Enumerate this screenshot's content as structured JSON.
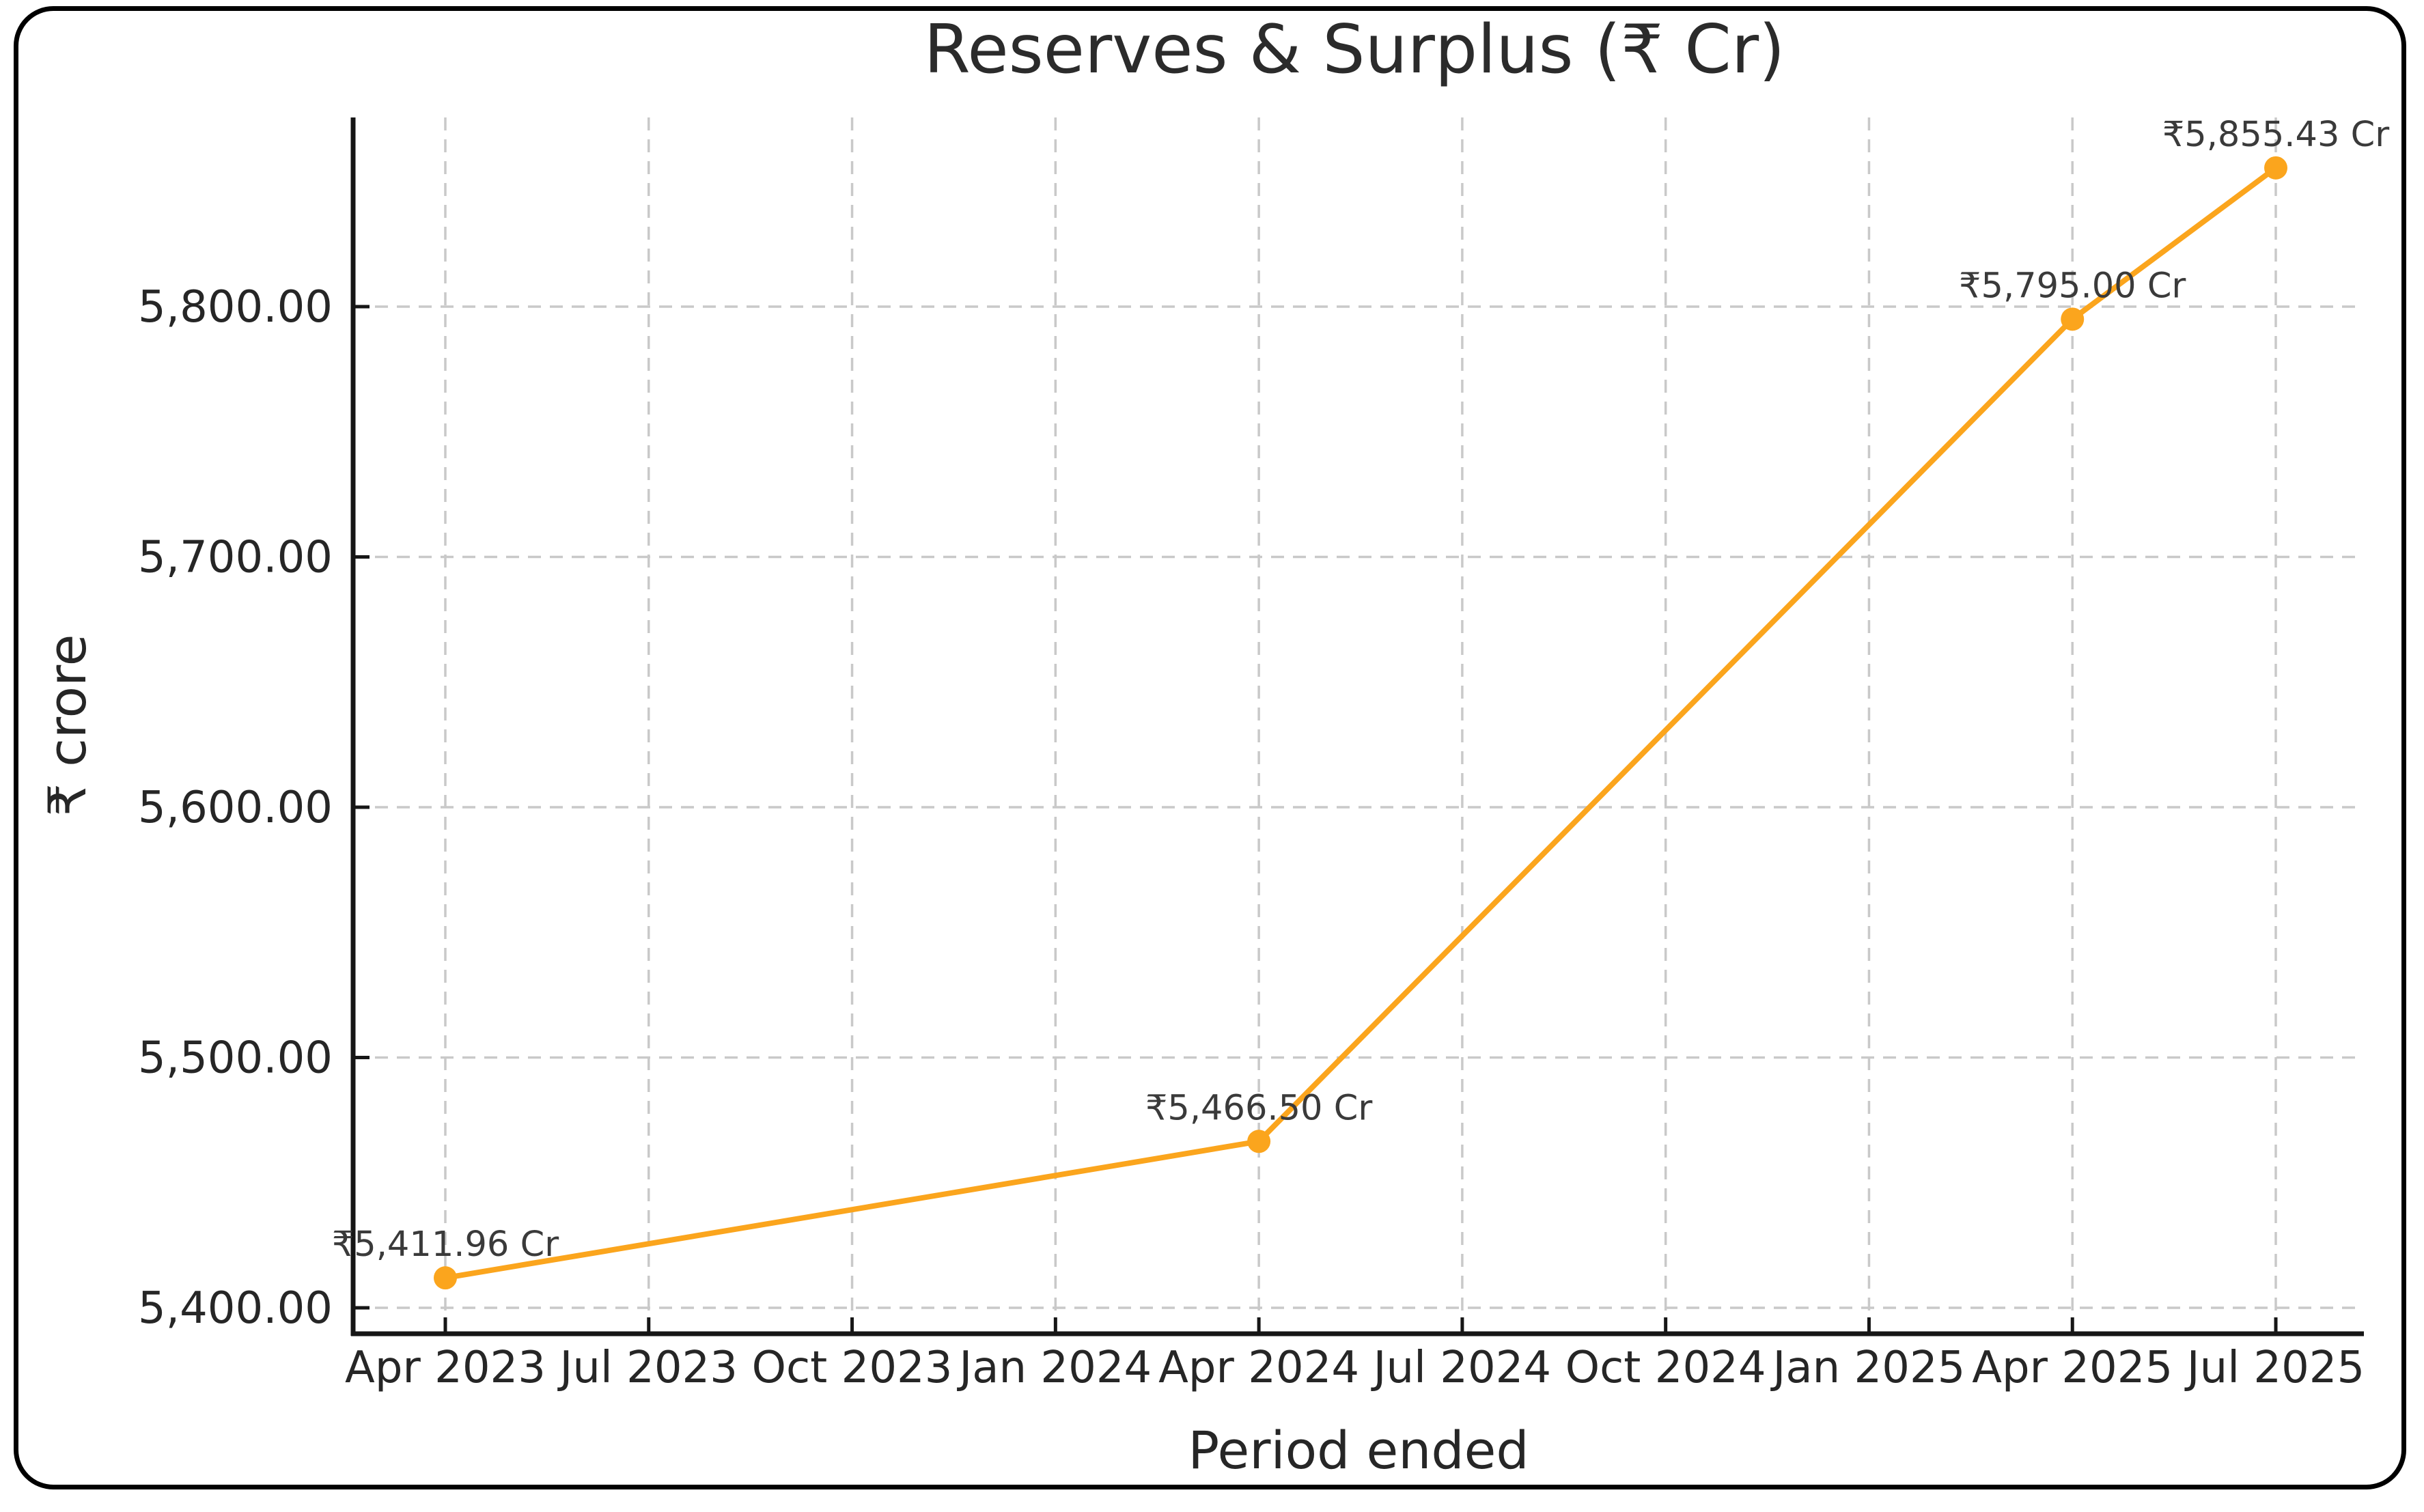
{
  "chart_data": {
    "type": "line",
    "title": "Reserves & Surplus (₹ Cr)",
    "xlabel": "Period ended",
    "ylabel": "₹ crore",
    "x_tick_labels": [
      "Apr 2023",
      "Jul 2023",
      "Oct 2023",
      "Jan 2024",
      "Apr 2024",
      "Jul 2024",
      "Oct 2024",
      "Jan 2025",
      "Apr 2025",
      "Jul 2025"
    ],
    "x_tick_month_index": [
      0,
      3,
      6,
      9,
      12,
      15,
      18,
      21,
      24,
      27
    ],
    "y_tick_values": [
      5400,
      5500,
      5600,
      5700,
      5800
    ],
    "y_tick_labels": [
      "5,400.00",
      "5,500.00",
      "5,600.00",
      "5,700.00",
      "5,800.00"
    ],
    "xlim_month_index": [
      -1.36,
      28.31
    ],
    "ylim": [
      5389.6,
      5875.6
    ],
    "grid": true,
    "legend": false,
    "line_color": "#FBA51D",
    "marker": "circle",
    "series": [
      {
        "points": [
          {
            "period": "Apr 2023",
            "month_index": 0,
            "value": 5411.96,
            "annotation": "₹5,411.96 Cr"
          },
          {
            "period": "Apr 2024",
            "month_index": 12,
            "value": 5466.5,
            "annotation": "₹5,466.50 Cr"
          },
          {
            "period": "Apr 2025",
            "month_index": 24,
            "value": 5795.0,
            "annotation": "₹5,795.00 Cr"
          },
          {
            "period": "Jul 2025",
            "month_index": 27,
            "value": 5855.43,
            "annotation": "₹5,855.43 Cr"
          }
        ]
      }
    ]
  },
  "colors": {
    "accent_line": "#FBA51D",
    "text_primary": "#262626",
    "annotation_text": "#3a3a3a",
    "gridline": "#c9c9c9",
    "card_border": "#000000",
    "background": "#ffffff"
  }
}
